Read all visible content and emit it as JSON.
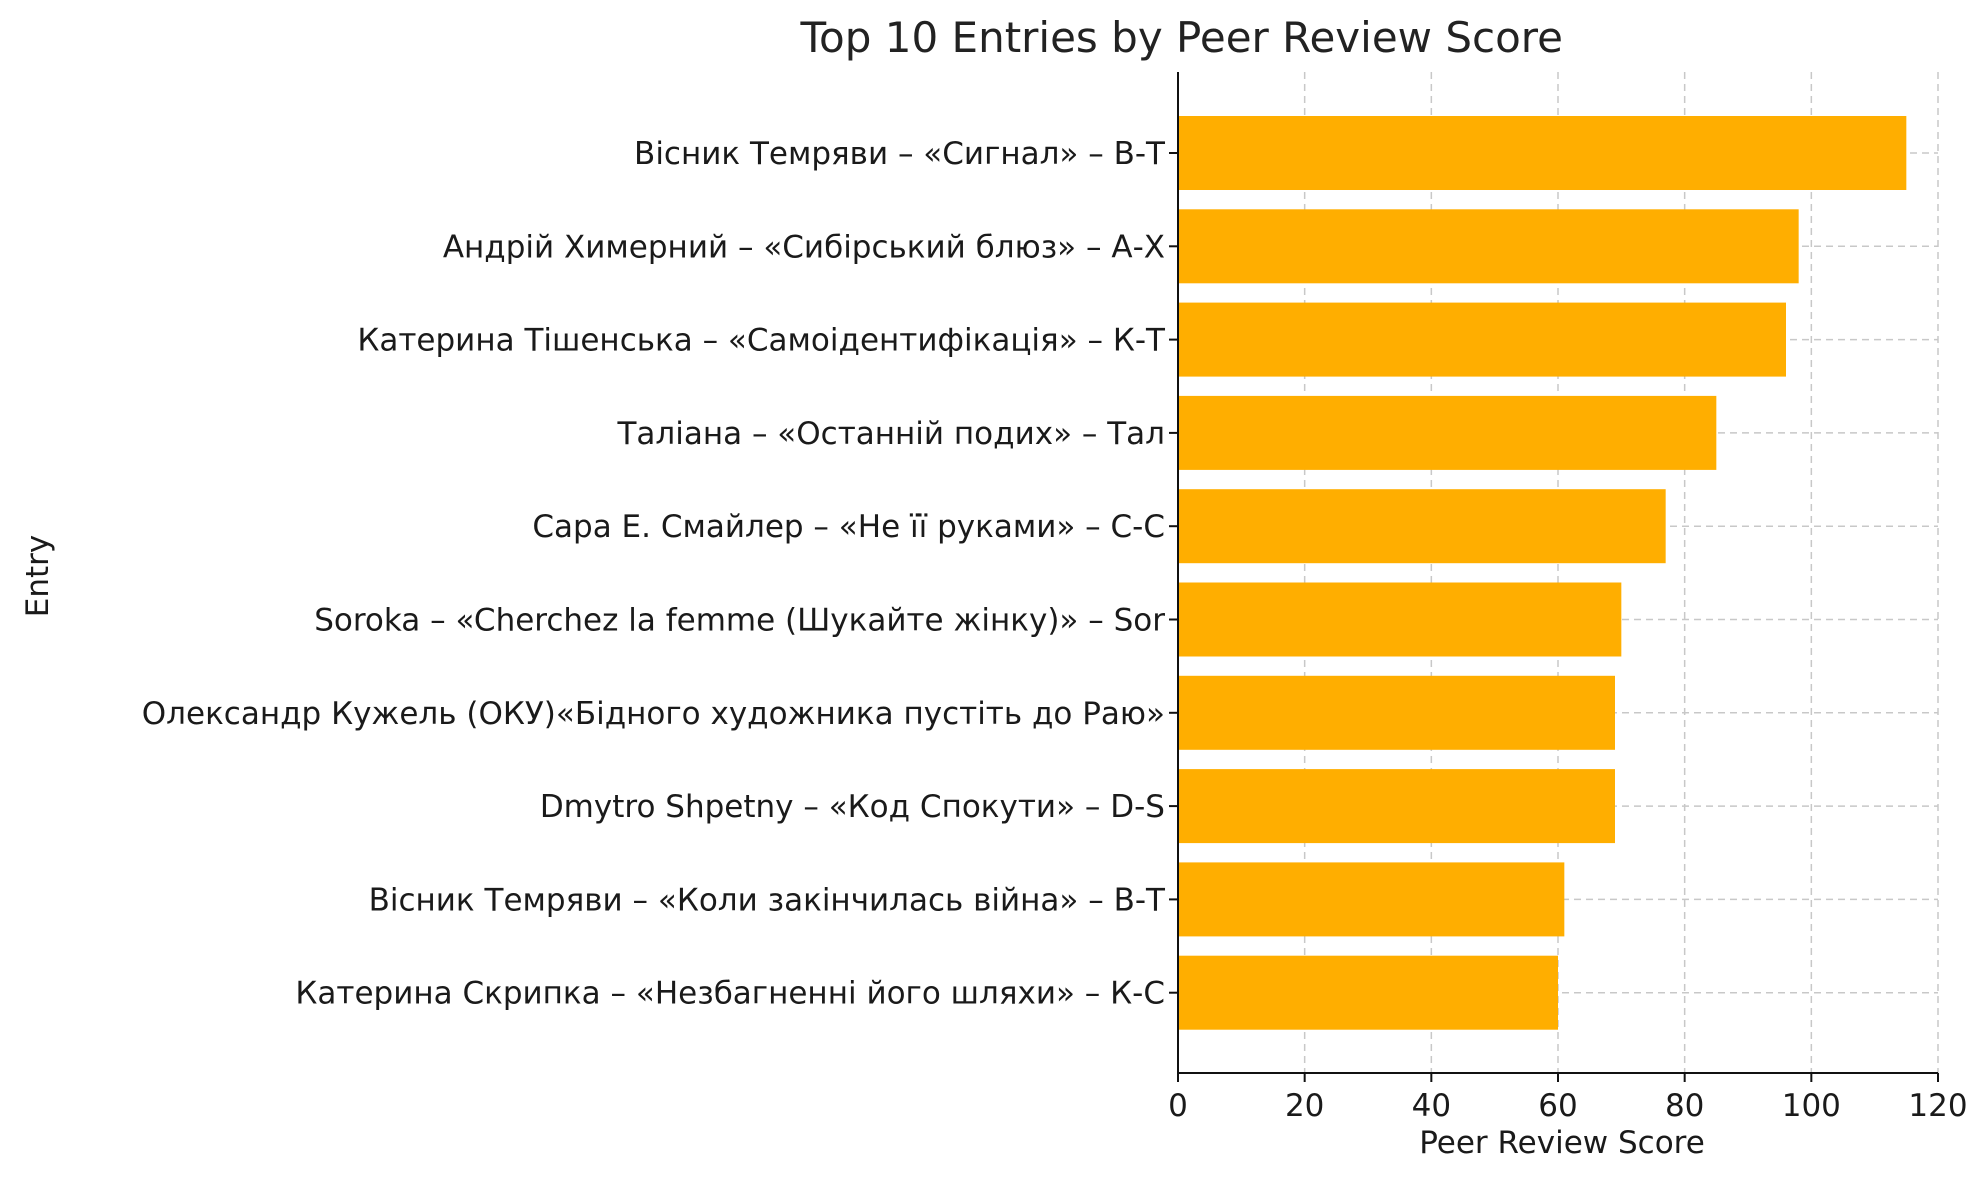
{
  "chart_data": {
    "type": "bar",
    "orientation": "horizontal",
    "title": "Top 10 Entries by Peer Review Score",
    "xlabel": "Peer Review Score",
    "ylabel": "Entry",
    "xlim": [
      0,
      120
    ],
    "xticks": [
      "0",
      "20",
      "40",
      "60",
      "80",
      "100",
      "120"
    ],
    "grid": true,
    "bar_color": "#FFAE00",
    "categories": [
      "Вісник Темряви – «Сигнал» – В-Т",
      "Андрій Химерний – «Сибірський блюз» – А-Х",
      "Катерина Тішенська – «Самоідентифікація» – К-Т",
      "Таліана – «Останній подих» – Тал",
      "Сара Е. Смайлер – «Не її руками» – С-С",
      "Soroka – «Cherchez la femme (Шукайте жінку)» – Sor",
      "Олександр Кужель (ОКУ)«Бідного художника пустіть до Раю»",
      "Dmytro Shpetny – «Код Спокути» – D-S",
      "Вісник Темряви – «Коли закінчилась війна» – В-Т",
      "Катерина Скрипка – «Незбагненні його шляхи» – К-С"
    ],
    "values": [
      115,
      98,
      96,
      85,
      77,
      70,
      69,
      69,
      61,
      60
    ]
  }
}
